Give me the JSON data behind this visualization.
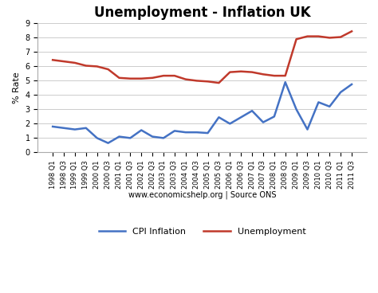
{
  "title": "Unemployment - Inflation UK",
  "ylabel": "% Rate",
  "xlabel": "www.economicshelp.org | Source ONS",
  "ylim": [
    0,
    9
  ],
  "yticks": [
    0,
    1,
    2,
    3,
    4,
    5,
    6,
    7,
    8,
    9
  ],
  "cpi_color": "#4472C4",
  "unemployment_color": "#C0392B",
  "background_color": "#FFFFFF",
  "labels": [
    "1998 Q1",
    "1998 Q3",
    "1999 Q1",
    "1999 Q3",
    "2000 Q1",
    "2000 Q3",
    "2001 Q1",
    "2001 Q3",
    "2002 Q1",
    "2002 Q3",
    "2003 Q1",
    "2003 Q3",
    "2004 Q1",
    "2004 Q3",
    "2005 Q1",
    "2005 Q3",
    "2006 Q1",
    "2006 Q3",
    "2007 Q1",
    "2007 Q3",
    "2008 Q1",
    "2008 Q3",
    "2009 Q1",
    "2009 Q3",
    "2010 Q1",
    "2010 Q3",
    "2011 Q1",
    "2011 Q3"
  ],
  "cpi_inflation": [
    1.8,
    1.7,
    1.6,
    1.7,
    1.0,
    0.65,
    1.1,
    1.0,
    1.55,
    1.1,
    1.0,
    1.5,
    1.4,
    1.4,
    1.35,
    2.45,
    2.0,
    2.45,
    2.9,
    2.1,
    2.5,
    4.9,
    3.0,
    1.6,
    3.5,
    3.2,
    4.2,
    4.75
  ],
  "unemployment": [
    6.45,
    6.35,
    6.25,
    6.05,
    6.0,
    5.8,
    5.2,
    5.15,
    5.15,
    5.2,
    5.35,
    5.35,
    5.1,
    5.0,
    4.95,
    4.85,
    5.6,
    5.65,
    5.6,
    5.45,
    5.35,
    5.35,
    7.9,
    8.1,
    8.1,
    8.0,
    8.05,
    8.45
  ],
  "legend_cpi": "CPI Inflation",
  "legend_unemployment": "Unemployment",
  "line_width": 1.8,
  "title_fontsize": 12,
  "tick_fontsize": 6,
  "ylabel_fontsize": 8,
  "xlabel_fontsize": 7,
  "legend_fontsize": 8,
  "grid_color": "#CCCCCC",
  "spine_color": "#AAAAAA"
}
